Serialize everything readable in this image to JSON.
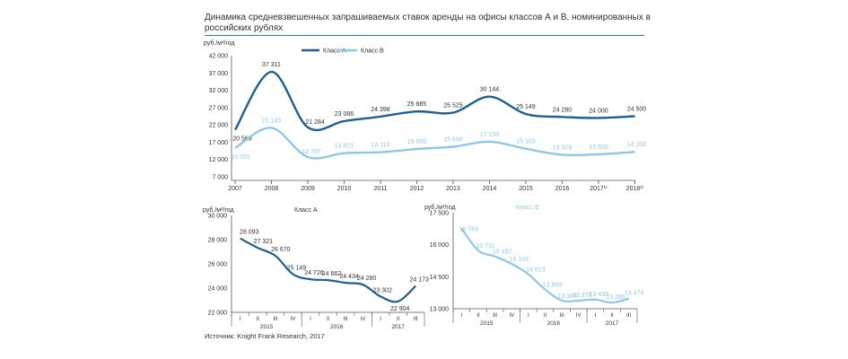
{
  "title": "Динамика средневзвешенных запрашиваемых ставок аренды на офисы классов А и В, номинированных в российских рублях",
  "source": "Источник: Knight Frank Research, 2017",
  "colors": {
    "classA": "#1e5f94",
    "classB": "#8fc7e6",
    "axis": "#555555",
    "grid": "#999999",
    "text": "#333333"
  },
  "chart_data": [
    {
      "type": "line",
      "ylabel": "руб./м²/год",
      "categories": [
        "2007",
        "2008",
        "2009",
        "2010",
        "2011",
        "2012",
        "2013",
        "2014",
        "2015",
        "2016",
        "2017¹⁾",
        "2018¹⁾"
      ],
      "ylim": [
        7000,
        42000
      ],
      "yticks": [
        "7 000",
        "12 000",
        "17 000",
        "22 000",
        "27 000",
        "32 000",
        "37 000",
        "42 000"
      ],
      "legend": [
        "Класс А",
        "Класс В"
      ],
      "series": [
        {
          "name": "Класс А",
          "values": [
            20569,
            37311,
            21284,
            23086,
            24398,
            25885,
            25525,
            30144,
            25149,
            24280,
            24000,
            24500
          ],
          "labels": [
            "20 569",
            "37 311",
            "21 284",
            "23 086",
            "24 398",
            "25 885",
            "25 525",
            "30 144",
            "25 149",
            "24 280",
            "24 000",
            "24 500"
          ]
        },
        {
          "name": "Класс В",
          "values": [
            15331,
            21143,
            12707,
            13821,
            14110,
            15009,
            15698,
            17150,
            15103,
            13379,
            13500,
            14200
          ],
          "labels": [
            "15 331",
            "21 143",
            "12 707",
            "13 821",
            "14 110",
            "15 009",
            "15 698",
            "17 150",
            "15 103",
            "13 379",
            "13 500",
            "14 200"
          ]
        }
      ]
    },
    {
      "type": "line",
      "title": "Класс А",
      "ylabel": "руб./м²/год",
      "ylim": [
        22000,
        30000
      ],
      "yticks": [
        "22 000",
        "24 000",
        "26 000",
        "28 000",
        "30 000"
      ],
      "quarters": [
        "I",
        "II",
        "III",
        "IV",
        "I",
        "II",
        "III",
        "IV",
        "I",
        "II",
        "III"
      ],
      "years": [
        "2015",
        "2016",
        "2017"
      ],
      "series": [
        {
          "name": "Класс А",
          "values": [
            28093,
            27321,
            26670,
            25149,
            24726,
            24662,
            24434,
            24280,
            23302,
            22904,
            24173
          ],
          "labels": [
            "28 093",
            "27 321",
            "26 670",
            "25 149",
            "24 726",
            "24 662",
            "24 434",
            "24 280",
            "23 302",
            "22 904",
            "24 173"
          ]
        }
      ]
    },
    {
      "type": "line",
      "title": "Класс В",
      "ylabel": "руб./м²/год",
      "ylim": [
        13000,
        17500
      ],
      "yticks": [
        "13 000",
        "14 500",
        "16 000",
        "17 500"
      ],
      "quarters": [
        "I",
        "II",
        "III",
        "IV",
        "I",
        "II",
        "III",
        "IV",
        "I",
        "II",
        "III"
      ],
      "years": [
        "2015",
        "2016",
        "2017"
      ],
      "series": [
        {
          "name": "Класс В",
          "values": [
            16769,
            15731,
            15452,
            15103,
            14613,
            13899,
            13384,
            13379,
            13430,
            13285,
            13474
          ],
          "labels": [
            "16 769",
            "15 731",
            "15 452",
            "15 103",
            "14 613",
            "13 899",
            "13 384",
            "13 379",
            "13 430",
            "13 285",
            "13 474"
          ]
        }
      ]
    }
  ]
}
